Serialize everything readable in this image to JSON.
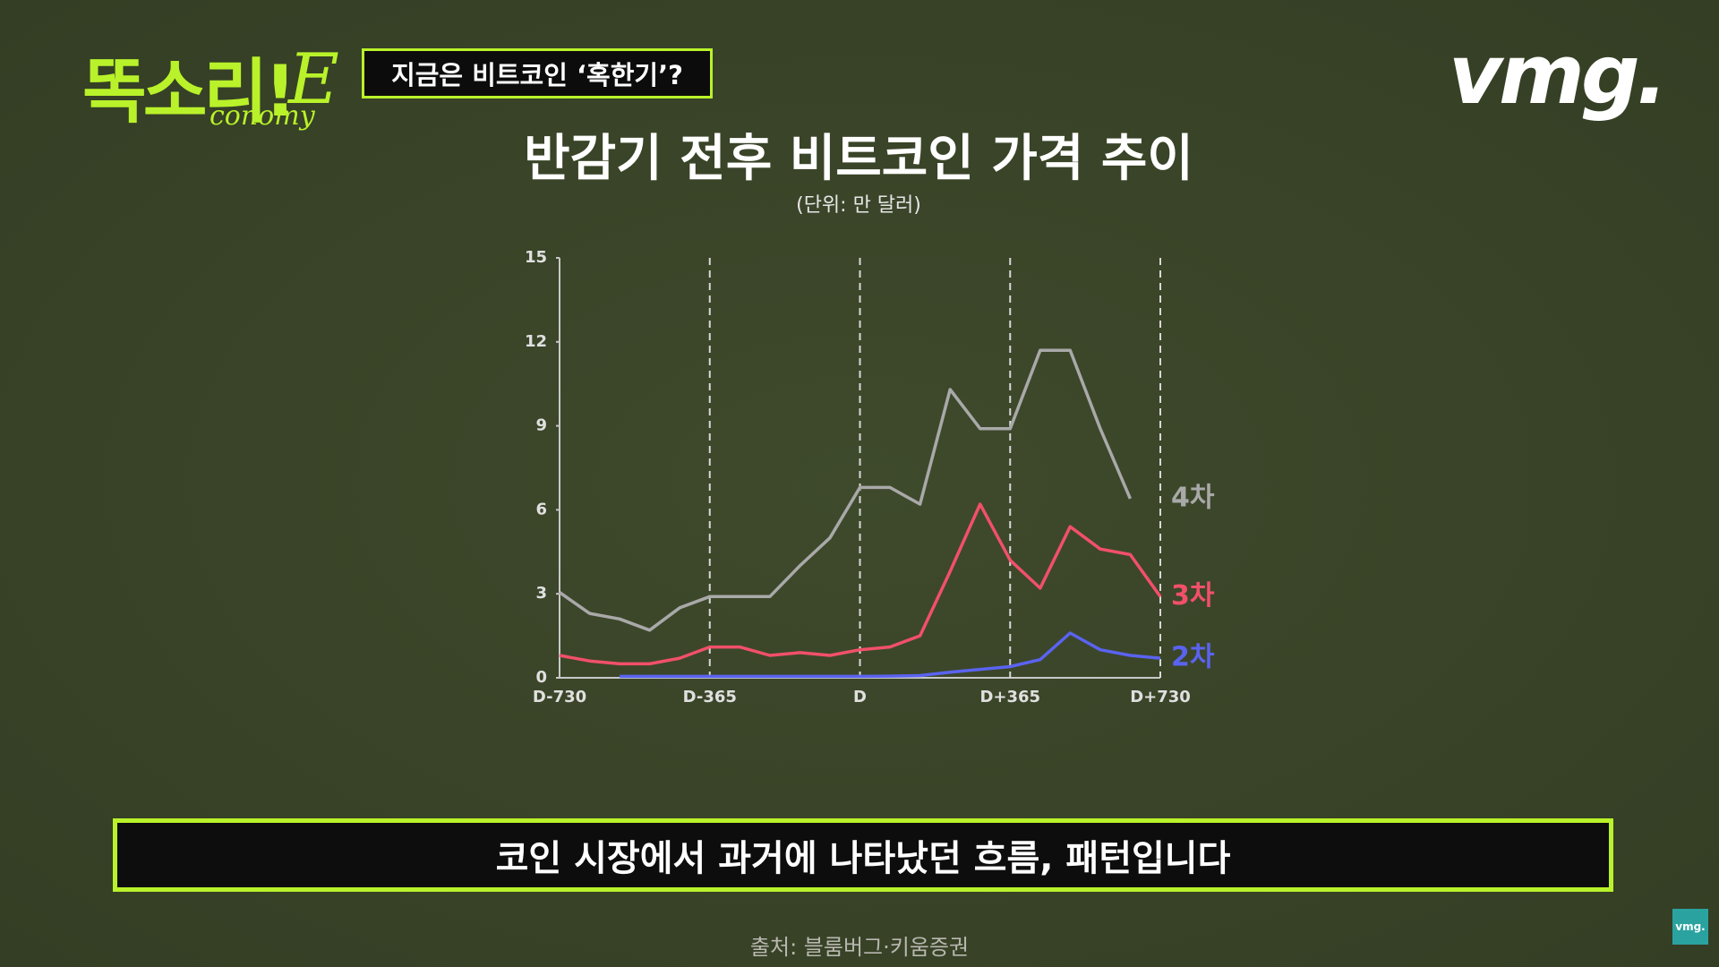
{
  "overlay": {
    "logo": "똑소리!",
    "logo_e": "E",
    "logo_sub": "conomy",
    "tag": "지금은 비트코인 ‘혹한기’?",
    "brand": "vmg.",
    "caption": "코인 시장에서 과거에 나타났던 흐름, 패턴입니다",
    "source": "출처: 블룸버그·키움증권",
    "corner": "vmg."
  },
  "chart_data": {
    "type": "line",
    "title": "반감기 전후 비트코인 가격 추이",
    "subtitle": "(단위: 만 달러)",
    "x": [
      -730,
      -657,
      -584,
      -511,
      -438,
      -365,
      -292,
      -219,
      -146,
      -73,
      0,
      73,
      146,
      219,
      292,
      365,
      438,
      511,
      584,
      657,
      730
    ],
    "series": [
      {
        "name": "4차",
        "color": "#a9a9a9",
        "values": [
          3.05,
          2.3,
          2.1,
          1.7,
          2.5,
          2.9,
          2.9,
          2.9,
          4.0,
          5.0,
          6.8,
          6.8,
          6.2,
          10.3,
          8.9,
          8.9,
          11.7,
          11.7,
          8.9,
          6.4,
          null
        ]
      },
      {
        "name": "3차",
        "color": "#f2506a",
        "values": [
          0.8,
          0.6,
          0.5,
          0.5,
          0.7,
          1.1,
          1.1,
          0.8,
          0.9,
          0.8,
          1.0,
          1.1,
          1.5,
          3.8,
          6.2,
          4.2,
          3.2,
          5.4,
          4.6,
          4.4,
          2.9
        ]
      },
      {
        "name": "2차",
        "color": "#5a63f0",
        "values": [
          null,
          null,
          0.05,
          0.05,
          0.05,
          0.05,
          0.05,
          0.05,
          0.05,
          0.05,
          0.05,
          0.06,
          0.08,
          0.2,
          0.3,
          0.4,
          0.65,
          1.6,
          1.0,
          0.8,
          0.7
        ]
      }
    ],
    "xlim": [
      -730,
      730
    ],
    "xticks": [
      {
        "value": -730,
        "label": "D-730"
      },
      {
        "value": -365,
        "label": "D-365"
      },
      {
        "value": 0,
        "label": "D"
      },
      {
        "value": 365,
        "label": "D+365"
      },
      {
        "value": 730,
        "label": "D+730"
      }
    ],
    "ylim": [
      0,
      15
    ],
    "yticks": [
      0,
      3,
      6,
      9,
      12,
      15
    ],
    "grid": true
  }
}
